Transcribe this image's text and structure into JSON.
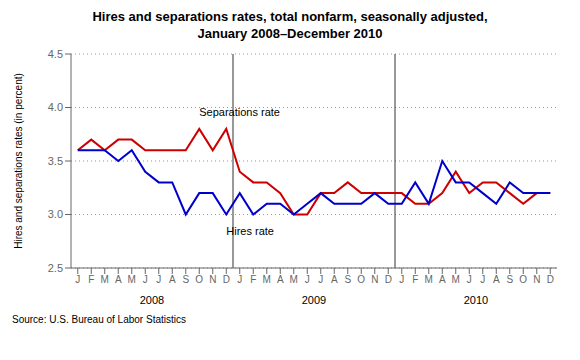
{
  "chart_data": {
    "type": "line",
    "title": "Hires and separations rates, total nonfarm, seasonally adjusted,",
    "subtitle": "January 2008–December 2010",
    "ylabel": "Hires and separations rates (in percent)",
    "source": "Source:  U.S. Bureau of Labor Statistics",
    "categories": [
      "J",
      "F",
      "M",
      "A",
      "M",
      "J",
      "J",
      "A",
      "S",
      "O",
      "N",
      "D",
      "J",
      "F",
      "M",
      "A",
      "M",
      "J",
      "J",
      "A",
      "S",
      "O",
      "N",
      "D",
      "J",
      "F",
      "M",
      "A",
      "M",
      "J",
      "J",
      "A",
      "S",
      "O",
      "N",
      "D"
    ],
    "years": [
      "2008",
      "2009",
      "2010"
    ],
    "series": [
      {
        "name": "Separations rate",
        "color": "#CC0000",
        "values": [
          3.6,
          3.7,
          3.6,
          3.7,
          3.7,
          3.6,
          3.6,
          3.6,
          3.6,
          3.8,
          3.6,
          3.8,
          3.4,
          3.3,
          3.3,
          3.2,
          3.0,
          3.0,
          3.2,
          3.2,
          3.3,
          3.2,
          3.2,
          3.2,
          3.2,
          3.1,
          3.1,
          3.2,
          3.4,
          3.2,
          3.3,
          3.3,
          3.2,
          3.1,
          3.2,
          3.2
        ]
      },
      {
        "name": "Hires rate",
        "color": "#0000CC",
        "values": [
          3.6,
          3.6,
          3.6,
          3.5,
          3.6,
          3.4,
          3.3,
          3.3,
          3.0,
          3.2,
          3.2,
          3.0,
          3.2,
          3.0,
          3.1,
          3.1,
          3.0,
          3.1,
          3.2,
          3.1,
          3.1,
          3.1,
          3.2,
          3.1,
          3.1,
          3.3,
          3.1,
          3.5,
          3.3,
          3.3,
          3.2,
          3.1,
          3.3,
          3.2,
          3.2,
          3.2
        ]
      }
    ],
    "ylim": [
      2.5,
      4.5
    ],
    "yticks": [
      2.5,
      {
        "value": 3.0,
        "label": "3.0"
      },
      3.5,
      {
        "value": 4.0,
        "label": "4.0"
      },
      4.5
    ],
    "grid": true,
    "annotations": [
      {
        "text": "Separations rate",
        "x": 9,
        "y": 3.92,
        "anchor": "bottom"
      },
      {
        "text": "Hires rate",
        "x": 11,
        "y": 2.88,
        "anchor": "top"
      }
    ]
  }
}
